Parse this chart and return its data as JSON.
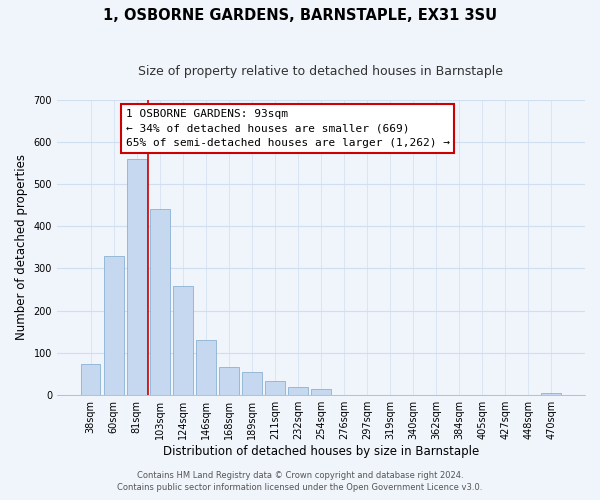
{
  "title": "1, OSBORNE GARDENS, BARNSTAPLE, EX31 3SU",
  "subtitle": "Size of property relative to detached houses in Barnstaple",
  "xlabel": "Distribution of detached houses by size in Barnstaple",
  "ylabel": "Number of detached properties",
  "categories": [
    "38sqm",
    "60sqm",
    "81sqm",
    "103sqm",
    "124sqm",
    "146sqm",
    "168sqm",
    "189sqm",
    "211sqm",
    "232sqm",
    "254sqm",
    "276sqm",
    "297sqm",
    "319sqm",
    "340sqm",
    "362sqm",
    "384sqm",
    "405sqm",
    "427sqm",
    "448sqm",
    "470sqm"
  ],
  "values": [
    72,
    330,
    560,
    440,
    258,
    130,
    65,
    53,
    32,
    18,
    13,
    0,
    0,
    0,
    0,
    0,
    0,
    0,
    0,
    0,
    5
  ],
  "bar_color": "#c5d8f0",
  "bar_edge_color": "#7ba7cc",
  "vline_color": "#cc0000",
  "ylim": [
    0,
    700
  ],
  "yticks": [
    0,
    100,
    200,
    300,
    400,
    500,
    600,
    700
  ],
  "annotation_title": "1 OSBORNE GARDENS: 93sqm",
  "annotation_line1": "← 34% of detached houses are smaller (669)",
  "annotation_line2": "65% of semi-detached houses are larger (1,262) →",
  "annotation_box_color": "#ffffff",
  "annotation_box_edge": "#cc0000",
  "footer_line1": "Contains HM Land Registry data © Crown copyright and database right 2024.",
  "footer_line2": "Contains public sector information licensed under the Open Government Licence v3.0.",
  "title_fontsize": 10.5,
  "subtitle_fontsize": 9,
  "axis_label_fontsize": 8.5,
  "tick_fontsize": 7,
  "annotation_fontsize": 8,
  "footer_fontsize": 6,
  "grid_color": "#d0dff0",
  "background_color": "#f0f5fc"
}
